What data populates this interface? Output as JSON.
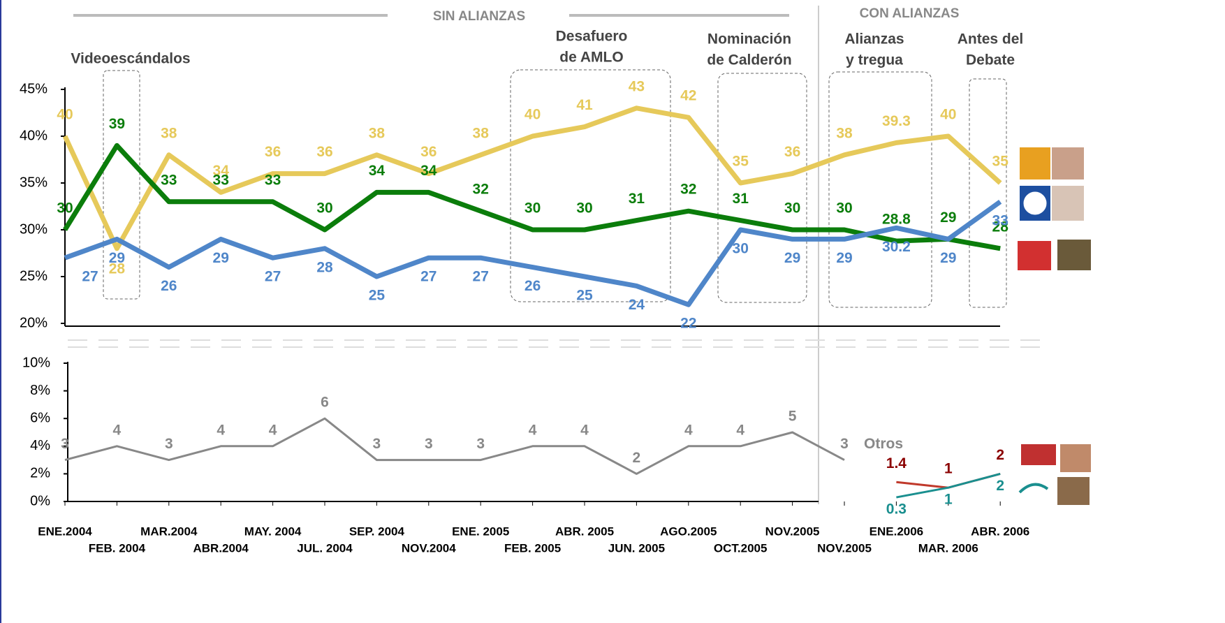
{
  "chart_data": [
    {
      "type": "line",
      "ylim": [
        20,
        45
      ],
      "yticks": [
        {
          "value": 20,
          "label": "20%"
        },
        {
          "value": 25,
          "label": "25%"
        },
        {
          "value": 30,
          "label": "30%"
        },
        {
          "value": 35,
          "label": "35%"
        },
        {
          "value": 40,
          "label": "40%"
        },
        {
          "value": 45,
          "label": "45%"
        }
      ],
      "series": [
        {
          "color": "#e6c95a",
          "values": [
            40,
            28,
            38,
            34,
            36,
            36,
            38,
            36,
            38,
            40,
            41,
            43,
            42,
            35,
            36,
            38,
            39.3,
            40,
            35
          ]
        },
        {
          "color": "#0b7d0b",
          "values": [
            30,
            39,
            33,
            33,
            33,
            30,
            34,
            34,
            32,
            30,
            30,
            31,
            32,
            31,
            30,
            30,
            28.8,
            29,
            28
          ]
        },
        {
          "color": "#4f86c9",
          "values": [
            27,
            29,
            26,
            29,
            27,
            28,
            25,
            27,
            27,
            26,
            25,
            24,
            22,
            30,
            29,
            29,
            30.2,
            29,
            33
          ]
        }
      ],
      "section_labels": [
        "SIN ALIANZAS",
        "CON ALIANZAS"
      ],
      "annotations": [
        [
          "Videoescándalos"
        ],
        [
          "Desafuero",
          "de AMLO"
        ],
        [
          "Nominación",
          "de Calderón"
        ],
        [
          "Alianzas",
          "y tregua"
        ],
        [
          "Antes del",
          "Debate"
        ]
      ]
    },
    {
      "type": "line",
      "ylim": [
        0,
        10
      ],
      "yticks": [
        {
          "value": 0,
          "label": "0%"
        },
        {
          "value": 2,
          "label": "2%"
        },
        {
          "value": 4,
          "label": "4%"
        },
        {
          "value": 6,
          "label": "6%"
        },
        {
          "value": 8,
          "label": "8%"
        },
        {
          "value": 10,
          "label": "10%"
        }
      ],
      "categories": [
        "ENE.2004",
        "FEB. 2004",
        "MAR.2004",
        "ABR.2004",
        "MAY. 2004",
        "JUL. 2004",
        "SEP. 2004",
        "NOV.2004",
        "ENE. 2005",
        "FEB. 2005",
        "ABR. 2005",
        "JUN. 2005",
        "AGO.2005",
        "OCT.2005",
        "NOV.2005",
        "NOV.2005",
        "ENE.2006",
        "MAR. 2006",
        "ABR. 2006"
      ],
      "series": [
        {
          "name": "Otros",
          "color": "#888888",
          "values": [
            3,
            4,
            3,
            4,
            4,
            6,
            3,
            3,
            3,
            4,
            4,
            2,
            4,
            4,
            5,
            3,
            null,
            null,
            null
          ]
        },
        {
          "color": "#c0392b",
          "values": [
            null,
            null,
            null,
            null,
            null,
            null,
            null,
            null,
            null,
            null,
            null,
            null,
            null,
            null,
            null,
            null,
            1.4,
            1,
            2
          ]
        },
        {
          "color": "#1a8f8f",
          "values": [
            null,
            null,
            null,
            null,
            null,
            null,
            null,
            null,
            null,
            null,
            null,
            null,
            null,
            null,
            null,
            null,
            0.3,
            1,
            2
          ]
        }
      ]
    }
  ]
}
